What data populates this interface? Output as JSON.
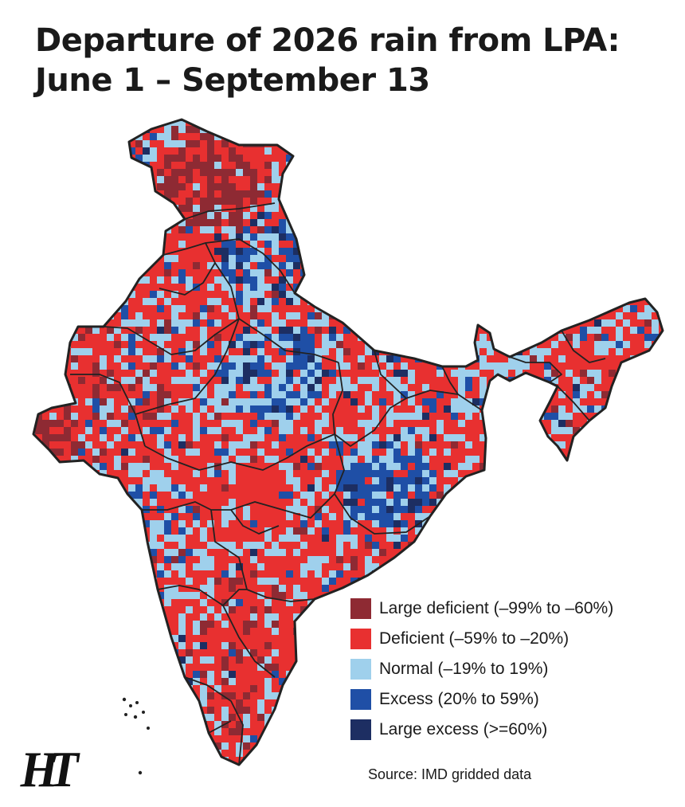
{
  "title": {
    "line1": "Departure of 2026 rain from LPA:",
    "line2": "June 1 – September 13"
  },
  "legend": {
    "items": [
      {
        "label": "Large deficient (–99% to –60%)",
        "color": "#8e2a33"
      },
      {
        "label": "Deficient (–59% to –20%)",
        "color": "#e83030"
      },
      {
        "label": "Normal (–19% to 19%)",
        "color": "#9fd0ec"
      },
      {
        "label": "Excess (20% to 59%)",
        "color": "#1f4fa6"
      },
      {
        "label": "Large excess (>=60%)",
        "color": "#1d2e62"
      }
    ]
  },
  "source": "Source: IMD gridded data",
  "logo": "HT",
  "colors": {
    "border": "#222222",
    "background": "#ffffff",
    "text": "#1a1a1a"
  }
}
